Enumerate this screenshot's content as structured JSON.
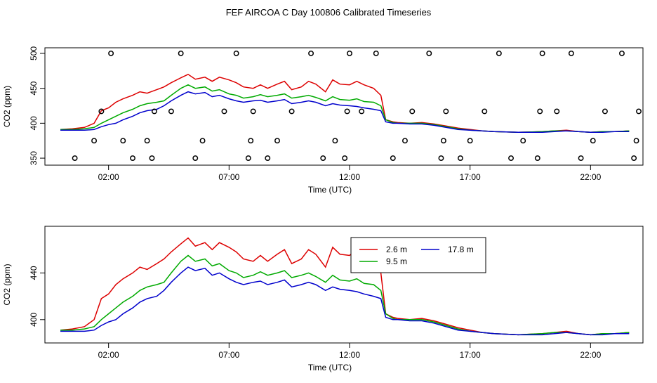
{
  "title": "FEF AIRCOA C  Day 100806  Calibrated Timeseries",
  "chart_data": [
    {
      "type": "scatter",
      "xlabel": "Time (UTC)",
      "ylabel": "CO2 (ppm)",
      "x_unit": "hours UTC",
      "x_range": [
        0,
        24
      ],
      "xticks": [
        2,
        7,
        12,
        17,
        22
      ],
      "xtick_labels": [
        "02:00",
        "07:00",
        "12:00",
        "17:00",
        "22:00"
      ],
      "ylim": [
        340,
        508
      ],
      "yticks": [
        350,
        400,
        450,
        500
      ],
      "ytick_labels": [
        "350",
        "400",
        "450",
        "500"
      ],
      "grid": false,
      "series": [
        {
          "name": "2.6 m",
          "color": "#dd0000",
          "x": [
            0.0,
            0.5,
            1.0,
            1.4,
            1.7,
            2.0,
            2.3,
            2.6,
            3.0,
            3.3,
            3.6,
            4.0,
            4.3,
            4.6,
            5.0,
            5.3,
            5.6,
            6.0,
            6.3,
            6.6,
            7.0,
            7.3,
            7.6,
            8.0,
            8.3,
            8.6,
            9.0,
            9.3,
            9.6,
            10.0,
            10.3,
            10.6,
            11.0,
            11.3,
            11.6,
            12.0,
            12.3,
            12.6,
            13.0,
            13.3,
            13.5,
            13.8,
            14.0,
            14.5,
            15.0,
            15.5,
            16.0,
            16.5,
            17.0,
            17.5,
            18.0,
            19.0,
            20.0,
            20.5,
            21.0,
            21.5,
            22.0,
            22.5,
            23.0,
            23.6
          ],
          "values": [
            391,
            392,
            394,
            400,
            418,
            422,
            430,
            435,
            440,
            445,
            443,
            448,
            452,
            458,
            465,
            470,
            463,
            466,
            460,
            466,
            462,
            458,
            452,
            450,
            455,
            450,
            456,
            460,
            448,
            452,
            460,
            456,
            445,
            462,
            456,
            455,
            460,
            455,
            450,
            440,
            405,
            402,
            401,
            400,
            401,
            399,
            396,
            393,
            391,
            389,
            388,
            387,
            388,
            389,
            390,
            388,
            387,
            388,
            388,
            389
          ]
        },
        {
          "name": "9.5 m",
          "color": "#00aa00",
          "x": [
            0.0,
            0.5,
            1.0,
            1.4,
            1.7,
            2.0,
            2.3,
            2.6,
            3.0,
            3.3,
            3.6,
            4.0,
            4.3,
            4.6,
            5.0,
            5.3,
            5.6,
            6.0,
            6.3,
            6.6,
            7.0,
            7.3,
            7.6,
            8.0,
            8.3,
            8.6,
            9.0,
            9.3,
            9.6,
            10.0,
            10.3,
            10.6,
            11.0,
            11.3,
            11.6,
            12.0,
            12.3,
            12.6,
            13.0,
            13.3,
            13.5,
            13.8,
            14.0,
            14.5,
            15.0,
            15.5,
            16.0,
            16.5,
            17.0,
            17.5,
            18.0,
            19.0,
            20.0,
            20.5,
            21.0,
            21.5,
            22.0,
            22.5,
            23.0,
            23.6
          ],
          "values": [
            391,
            391,
            392,
            394,
            400,
            405,
            410,
            415,
            420,
            425,
            428,
            430,
            432,
            440,
            450,
            455,
            450,
            452,
            446,
            448,
            442,
            440,
            436,
            438,
            441,
            438,
            440,
            442,
            436,
            438,
            440,
            437,
            432,
            438,
            434,
            433,
            435,
            431,
            430,
            425,
            405,
            401,
            400,
            400,
            400,
            398,
            395,
            392,
            390,
            389,
            388,
            387,
            388,
            389,
            389,
            388,
            387,
            388,
            388,
            389
          ]
        },
        {
          "name": "17.8 m",
          "color": "#0000cc",
          "x": [
            0.0,
            0.5,
            1.0,
            1.4,
            1.7,
            2.0,
            2.3,
            2.6,
            3.0,
            3.3,
            3.6,
            4.0,
            4.3,
            4.6,
            5.0,
            5.3,
            5.6,
            6.0,
            6.3,
            6.6,
            7.0,
            7.3,
            7.6,
            8.0,
            8.3,
            8.6,
            9.0,
            9.3,
            9.6,
            10.0,
            10.3,
            10.6,
            11.0,
            11.3,
            11.6,
            12.0,
            12.3,
            12.6,
            13.0,
            13.3,
            13.5,
            13.8,
            14.0,
            14.5,
            15.0,
            15.5,
            16.0,
            16.5,
            17.0,
            17.5,
            18.0,
            19.0,
            20.0,
            20.5,
            21.0,
            21.5,
            22.0,
            22.5,
            23.0,
            23.6
          ],
          "values": [
            390,
            390,
            390,
            391,
            395,
            398,
            400,
            405,
            410,
            415,
            418,
            420,
            425,
            432,
            440,
            445,
            442,
            444,
            438,
            440,
            435,
            432,
            430,
            432,
            433,
            430,
            432,
            434,
            428,
            430,
            432,
            430,
            425,
            428,
            426,
            425,
            424,
            422,
            420,
            418,
            402,
            400,
            400,
            399,
            399,
            397,
            394,
            391,
            390,
            389,
            388,
            387,
            387,
            388,
            389,
            388,
            387,
            387,
            388,
            388
          ]
        }
      ],
      "points": {
        "style": "open circle",
        "x": [
          0.6,
          1.4,
          1.7,
          2.1,
          2.6,
          3.0,
          3.6,
          3.8,
          3.9,
          4.6,
          5.0,
          5.6,
          5.9,
          6.8,
          7.3,
          7.8,
          7.9,
          8.0,
          8.6,
          9.0,
          9.6,
          10.4,
          10.9,
          11.4,
          11.8,
          11.9,
          12.0,
          12.5,
          13.1,
          13.8,
          14.3,
          14.6,
          15.3,
          15.8,
          15.9,
          16.0,
          16.6,
          17.0,
          17.6,
          18.2,
          18.7,
          19.2,
          19.8,
          19.9,
          20.0,
          20.6,
          21.2,
          21.6,
          22.1,
          22.6,
          23.3,
          23.8,
          23.9,
          24.0
        ],
        "y": [
          350,
          375,
          417,
          500,
          375,
          350,
          375,
          350,
          417,
          417,
          500,
          350,
          375,
          417,
          500,
          350,
          375,
          417,
          350,
          375,
          417,
          500,
          350,
          375,
          350,
          417,
          500,
          417,
          500,
          350,
          375,
          417,
          500,
          350,
          375,
          417,
          350,
          375,
          417,
          500,
          350,
          375,
          350,
          417,
          500,
          417,
          500,
          350,
          375,
          417,
          500,
          350,
          375,
          417
        ]
      }
    },
    {
      "type": "line",
      "xlabel": "Time (UTC)",
      "ylabel": "CO2 (ppm)",
      "x_unit": "hours UTC",
      "x_range": [
        0,
        24
      ],
      "xticks": [
        2,
        7,
        12,
        17,
        22
      ],
      "xtick_labels": [
        "02:00",
        "07:00",
        "12:00",
        "17:00",
        "22:00"
      ],
      "ylim": [
        380,
        480
      ],
      "yticks": [
        400,
        440
      ],
      "ytick_labels": [
        "400",
        "440"
      ],
      "grid": false,
      "legend_position": "top-right",
      "series": [
        {
          "name": "2.6 m",
          "color": "#dd0000",
          "x": [
            0.0,
            0.5,
            1.0,
            1.4,
            1.7,
            2.0,
            2.3,
            2.6,
            3.0,
            3.3,
            3.6,
            4.0,
            4.3,
            4.6,
            5.0,
            5.3,
            5.6,
            6.0,
            6.3,
            6.6,
            7.0,
            7.3,
            7.6,
            8.0,
            8.3,
            8.6,
            9.0,
            9.3,
            9.6,
            10.0,
            10.3,
            10.6,
            11.0,
            11.3,
            11.6,
            12.0,
            12.3,
            12.6,
            13.0,
            13.3,
            13.5,
            13.8,
            14.0,
            14.5,
            15.0,
            15.5,
            16.0,
            16.5,
            17.0,
            17.5,
            18.0,
            19.0,
            20.0,
            20.5,
            21.0,
            21.5,
            22.0,
            22.5,
            23.0,
            23.6
          ],
          "values": [
            391,
            392,
            394,
            400,
            418,
            422,
            430,
            435,
            440,
            445,
            443,
            448,
            452,
            458,
            465,
            470,
            463,
            466,
            460,
            466,
            462,
            458,
            452,
            450,
            455,
            450,
            456,
            460,
            448,
            452,
            460,
            456,
            445,
            462,
            456,
            455,
            460,
            455,
            450,
            440,
            405,
            402,
            401,
            400,
            401,
            399,
            396,
            393,
            391,
            389,
            388,
            387,
            388,
            389,
            390,
            388,
            387,
            388,
            388,
            389
          ]
        },
        {
          "name": "9.5 m",
          "color": "#00aa00",
          "x": [
            0.0,
            0.5,
            1.0,
            1.4,
            1.7,
            2.0,
            2.3,
            2.6,
            3.0,
            3.3,
            3.6,
            4.0,
            4.3,
            4.6,
            5.0,
            5.3,
            5.6,
            6.0,
            6.3,
            6.6,
            7.0,
            7.3,
            7.6,
            8.0,
            8.3,
            8.6,
            9.0,
            9.3,
            9.6,
            10.0,
            10.3,
            10.6,
            11.0,
            11.3,
            11.6,
            12.0,
            12.3,
            12.6,
            13.0,
            13.3,
            13.5,
            13.8,
            14.0,
            14.5,
            15.0,
            15.5,
            16.0,
            16.5,
            17.0,
            17.5,
            18.0,
            19.0,
            20.0,
            20.5,
            21.0,
            21.5,
            22.0,
            22.5,
            23.0,
            23.6
          ],
          "values": [
            391,
            391,
            392,
            394,
            400,
            405,
            410,
            415,
            420,
            425,
            428,
            430,
            432,
            440,
            450,
            455,
            450,
            452,
            446,
            448,
            442,
            440,
            436,
            438,
            441,
            438,
            440,
            442,
            436,
            438,
            440,
            437,
            432,
            438,
            434,
            433,
            435,
            431,
            430,
            425,
            405,
            401,
            400,
            400,
            400,
            398,
            395,
            392,
            390,
            389,
            388,
            387,
            388,
            389,
            389,
            388,
            387,
            388,
            388,
            389
          ]
        },
        {
          "name": "17.8 m",
          "color": "#0000cc",
          "x": [
            0.0,
            0.5,
            1.0,
            1.4,
            1.7,
            2.0,
            2.3,
            2.6,
            3.0,
            3.3,
            3.6,
            4.0,
            4.3,
            4.6,
            5.0,
            5.3,
            5.6,
            6.0,
            6.3,
            6.6,
            7.0,
            7.3,
            7.6,
            8.0,
            8.3,
            8.6,
            9.0,
            9.3,
            9.6,
            10.0,
            10.3,
            10.6,
            11.0,
            11.3,
            11.6,
            12.0,
            12.3,
            12.6,
            13.0,
            13.3,
            13.5,
            13.8,
            14.0,
            14.5,
            15.0,
            15.5,
            16.0,
            16.5,
            17.0,
            17.5,
            18.0,
            19.0,
            20.0,
            20.5,
            21.0,
            21.5,
            22.0,
            22.5,
            23.0,
            23.6
          ],
          "values": [
            390,
            390,
            390,
            391,
            395,
            398,
            400,
            405,
            410,
            415,
            418,
            420,
            425,
            432,
            440,
            445,
            442,
            444,
            438,
            440,
            435,
            432,
            430,
            432,
            433,
            430,
            432,
            434,
            428,
            430,
            432,
            430,
            425,
            428,
            426,
            425,
            424,
            422,
            420,
            418,
            402,
            400,
            400,
            399,
            399,
            397,
            394,
            391,
            390,
            389,
            388,
            387,
            387,
            388,
            389,
            388,
            387,
            387,
            388,
            388
          ]
        }
      ]
    }
  ]
}
